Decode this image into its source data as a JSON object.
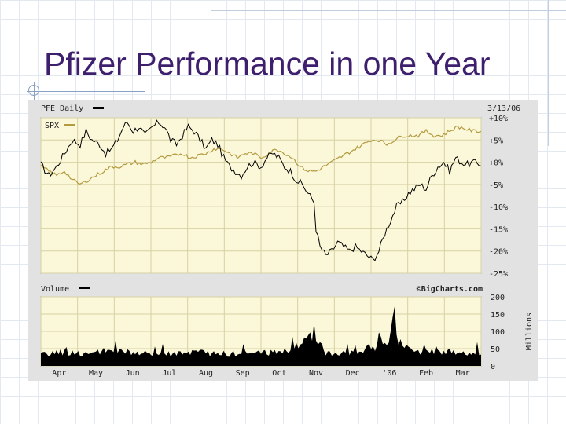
{
  "slide": {
    "title": "Pfizer Performance in one Year"
  },
  "chart_data": {
    "type": "line",
    "price_panel": {
      "symbol_label": "PFE Daily",
      "date_label": "3/13/06",
      "y_tick_labels": [
        "+10%",
        "+5%",
        "+0%",
        "-5%",
        "-10%",
        "-15%",
        "-20%",
        "-25%"
      ],
      "ylim": [
        -25,
        10
      ],
      "series": [
        {
          "name": "PFE Daily",
          "color": "#000000",
          "keypoints": [
            [
              0,
              -0.5
            ],
            [
              4,
              -3
            ],
            [
              8,
              -1
            ],
            [
              12,
              2
            ],
            [
              16,
              5
            ],
            [
              20,
              4
            ],
            [
              23,
              7
            ],
            [
              26,
              5
            ],
            [
              30,
              4
            ],
            [
              33,
              2
            ],
            [
              36,
              3
            ],
            [
              39,
              5
            ],
            [
              42,
              8
            ],
            [
              44,
              9
            ],
            [
              47,
              7
            ],
            [
              50,
              8
            ],
            [
              53,
              6
            ],
            [
              57,
              8
            ],
            [
              60,
              9
            ],
            [
              63,
              8
            ],
            [
              66,
              5
            ],
            [
              69,
              4
            ],
            [
              72,
              6
            ],
            [
              75,
              8
            ],
            [
              78,
              7
            ],
            [
              81,
              5
            ],
            [
              84,
              3
            ],
            [
              87,
              5
            ],
            [
              90,
              4
            ],
            [
              93,
              1
            ],
            [
              96,
              -1
            ],
            [
              99,
              -2
            ],
            [
              102,
              -3
            ],
            [
              105,
              -1
            ],
            [
              108,
              0
            ],
            [
              112,
              -1
            ],
            [
              115,
              1
            ],
            [
              118,
              2
            ],
            [
              121,
              1
            ],
            [
              124,
              -1
            ],
            [
              127,
              -2
            ],
            [
              130,
              -4
            ],
            [
              133,
              -5
            ],
            [
              136,
              -7
            ],
            [
              139,
              -9
            ],
            [
              140,
              -15
            ],
            [
              142,
              -19
            ],
            [
              145,
              -21
            ],
            [
              148,
              -20
            ],
            [
              151,
              -18
            ],
            [
              154,
              -19
            ],
            [
              157,
              -20
            ],
            [
              160,
              -19
            ],
            [
              163,
              -20
            ],
            [
              166,
              -21
            ],
            [
              169,
              -22
            ],
            [
              172,
              -20
            ],
            [
              175,
              -16
            ],
            [
              178,
              -13
            ],
            [
              181,
              -10
            ],
            [
              184,
              -9
            ],
            [
              187,
              -7
            ],
            [
              190,
              -6
            ],
            [
              193,
              -5
            ],
            [
              196,
              -6
            ],
            [
              199,
              -3
            ],
            [
              202,
              -1
            ],
            [
              205,
              0
            ],
            [
              208,
              -2
            ],
            [
              211,
              1
            ],
            [
              214,
              0
            ],
            [
              217,
              -0.5
            ],
            [
              220,
              0
            ],
            [
              224,
              -0.5
            ]
          ]
        },
        {
          "name": "SPX",
          "color": "#b39a3f",
          "keypoints": [
            [
              0,
              -1
            ],
            [
              4,
              -2
            ],
            [
              8,
              -3
            ],
            [
              12,
              -2
            ],
            [
              16,
              -4
            ],
            [
              20,
              -5
            ],
            [
              24,
              -4
            ],
            [
              28,
              -3
            ],
            [
              32,
              -2
            ],
            [
              36,
              -1
            ],
            [
              40,
              -1
            ],
            [
              44,
              -0.5
            ],
            [
              48,
              0
            ],
            [
              52,
              -0.5
            ],
            [
              56,
              0
            ],
            [
              60,
              1
            ],
            [
              64,
              1
            ],
            [
              68,
              1.5
            ],
            [
              72,
              2
            ],
            [
              76,
              1
            ],
            [
              80,
              1.5
            ],
            [
              84,
              2
            ],
            [
              88,
              3
            ],
            [
              92,
              3
            ],
            [
              96,
              2
            ],
            [
              100,
              1
            ],
            [
              104,
              2
            ],
            [
              108,
              2
            ],
            [
              112,
              1
            ],
            [
              116,
              2
            ],
            [
              120,
              3
            ],
            [
              124,
              2
            ],
            [
              128,
              1
            ],
            [
              132,
              -1
            ],
            [
              136,
              -2
            ],
            [
              140,
              -2
            ],
            [
              144,
              -1
            ],
            [
              148,
              0
            ],
            [
              152,
              1
            ],
            [
              156,
              2
            ],
            [
              160,
              3
            ],
            [
              164,
              4
            ],
            [
              168,
              5
            ],
            [
              172,
              5
            ],
            [
              176,
              4
            ],
            [
              180,
              5
            ],
            [
              184,
              6
            ],
            [
              188,
              6
            ],
            [
              192,
              6
            ],
            [
              196,
              7
            ],
            [
              200,
              6
            ],
            [
              204,
              6
            ],
            [
              208,
              7
            ],
            [
              212,
              8
            ],
            [
              216,
              7.5
            ],
            [
              220,
              7
            ],
            [
              224,
              7
            ]
          ]
        }
      ]
    },
    "volume_panel": {
      "label": "Volume",
      "watermark": "©BigCharts.com",
      "unit_label": "Millions",
      "y_tick_labels": [
        "200",
        "150",
        "100",
        "50",
        "0"
      ],
      "ylim": [
        0,
        200
      ],
      "keypoints": [
        [
          0,
          32
        ],
        [
          10,
          40
        ],
        [
          20,
          36
        ],
        [
          30,
          38
        ],
        [
          40,
          42
        ],
        [
          50,
          36
        ],
        [
          60,
          34
        ],
        [
          70,
          36
        ],
        [
          80,
          38
        ],
        [
          90,
          36
        ],
        [
          100,
          34
        ],
        [
          110,
          38
        ],
        [
          120,
          40
        ],
        [
          128,
          48
        ],
        [
          134,
          75
        ],
        [
          136,
          100
        ],
        [
          138,
          70
        ],
        [
          142,
          60
        ],
        [
          145,
          40
        ],
        [
          150,
          38
        ],
        [
          160,
          42
        ],
        [
          170,
          55
        ],
        [
          172,
          85
        ],
        [
          175,
          60
        ],
        [
          178,
          90
        ],
        [
          180,
          140
        ],
        [
          182,
          70
        ],
        [
          185,
          55
        ],
        [
          190,
          40
        ],
        [
          200,
          44
        ],
        [
          210,
          40
        ],
        [
          220,
          38
        ],
        [
          224,
          40
        ]
      ],
      "series": [
        {
          "name": "Volume",
          "color": "#000000"
        }
      ]
    },
    "x_tick_labels": [
      "Apr",
      "May",
      "Jun",
      "Jul",
      "Aug",
      "Sep",
      "Oct",
      "Nov",
      "Dec",
      "'06",
      "Feb",
      "Mar"
    ],
    "grid": true,
    "legend": "top-left"
  }
}
